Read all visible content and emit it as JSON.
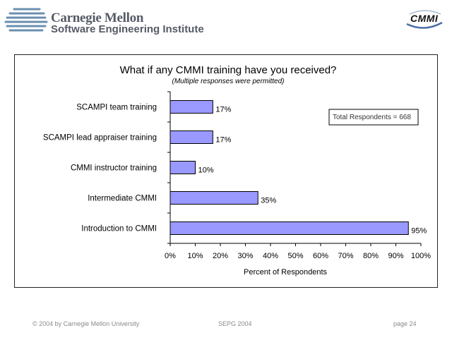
{
  "header": {
    "org_line1": "Carnegie Mellon",
    "org_line2": "Software Engineering Institute",
    "cmmi_logo": "CMMI"
  },
  "chart_data": {
    "type": "bar",
    "orientation": "horizontal",
    "title": "What if any CMMI training have you received?",
    "subtitle": "(Multiple responses were permitted)",
    "categories": [
      "SCAMPI team training",
      "SCAMPI lead appraiser training",
      "CMMI instructor training",
      "Intermediate CMMI",
      "Introduction to CMMI"
    ],
    "values": [
      17,
      17,
      10,
      35,
      95
    ],
    "data_labels": [
      "17%",
      "17%",
      "10%",
      "35%",
      "95%"
    ],
    "xlabel": "Percent of Respondents",
    "ylabel": "",
    "xlim": [
      0,
      100
    ],
    "xticks": [
      0,
      10,
      20,
      30,
      40,
      50,
      60,
      70,
      80,
      90,
      100
    ],
    "xtick_labels": [
      "0%",
      "10%",
      "20%",
      "30%",
      "40%",
      "50%",
      "60%",
      "70%",
      "80%",
      "90%",
      "100%"
    ],
    "grid": false,
    "bar_color": "#9999ff",
    "annotation": "Total Respondents = 668"
  },
  "footer": {
    "copyright": "© 2004 by Carnegie Mellon University",
    "event": "SEPG 2004",
    "page": "page 24"
  }
}
